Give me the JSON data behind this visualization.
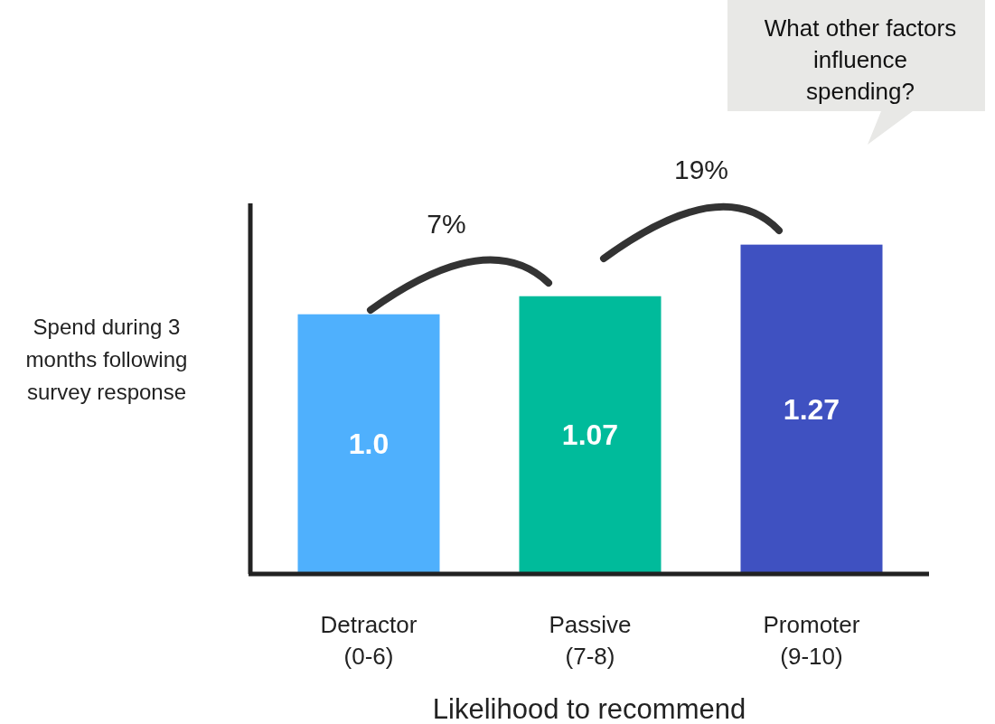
{
  "chart_data": {
    "type": "bar",
    "categories": [
      "Detractor (0-6)",
      "Passive (7-8)",
      "Promoter (9-10)"
    ],
    "values": [
      1.0,
      1.07,
      1.27
    ],
    "value_labels": [
      "1.0",
      "1.07",
      "1.27"
    ],
    "colors": [
      "#4fb0fd",
      "#00bb9b",
      "#3f51c1"
    ],
    "ylim": [
      0,
      1.43
    ],
    "xlabel": "Likelihood to recommend",
    "ylabel": "Spend during 3 months following survey response",
    "annotations": [
      "7%",
      "19%",
      "What other factors influence spending?"
    ]
  }
}
